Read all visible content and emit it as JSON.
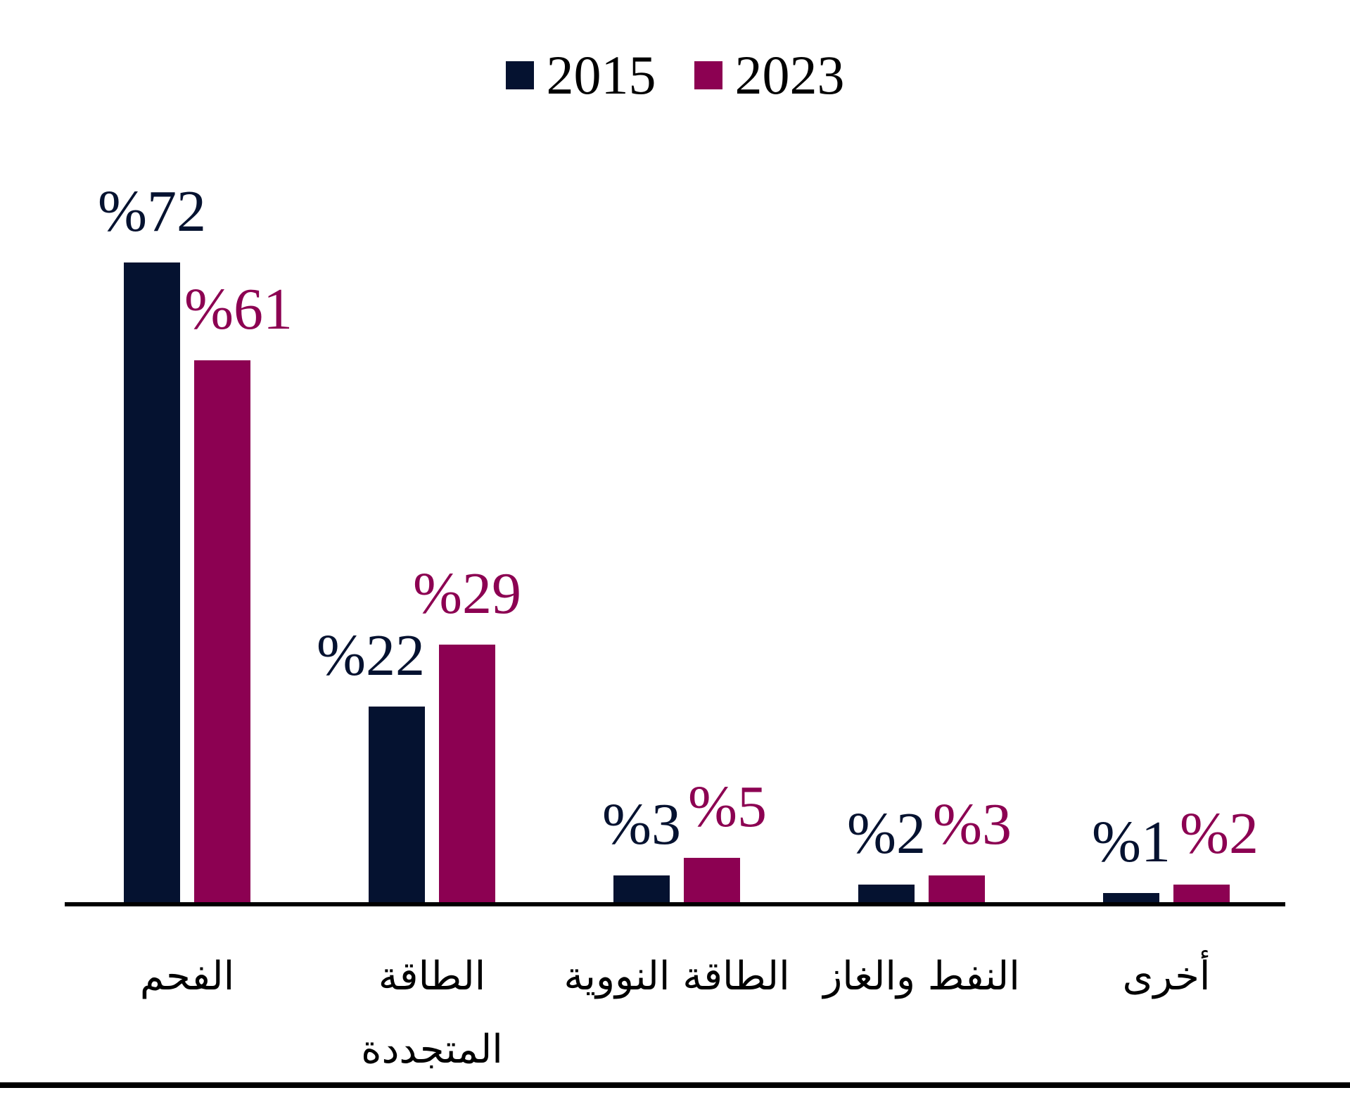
{
  "chart_data": {
    "type": "bar",
    "title": "",
    "categories": [
      "الفحم",
      "الطاقة المتجددة",
      "الطاقة النووية",
      "النفط والغاز",
      "أخرى"
    ],
    "categories_display": [
      "الفحم",
      "الطاقة\nالمتجددة",
      "الطاقة النووية",
      "النفط والغاز",
      "أخرى"
    ],
    "series": [
      {
        "name": "2015",
        "color": "#051230",
        "values": [
          72,
          22,
          3,
          2,
          1
        ],
        "data_labels": [
          "%72",
          "%22",
          "%3",
          "%2",
          "%1"
        ]
      },
      {
        "name": "2023",
        "color": "#8c0152",
        "values": [
          61,
          29,
          5,
          3,
          2
        ],
        "data_labels": [
          "%61",
          "%29",
          "%5",
          "%3",
          "%2"
        ]
      }
    ],
    "ylim": [
      0,
      80
    ],
    "grid": false,
    "legend_position": "top-center",
    "axis_line_color": "#000000",
    "bottom_rule_color": "#000000"
  }
}
